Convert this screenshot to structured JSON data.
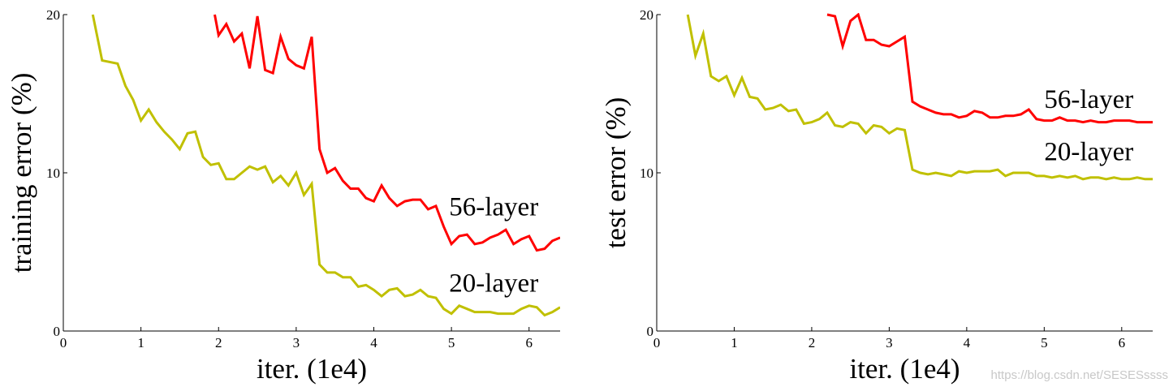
{
  "watermark": "https://blog.csdn.net/SESESssss",
  "chart_data": [
    {
      "type": "line",
      "title": "",
      "xlabel": "iter. (1e4)",
      "ylabel": "training error (%)",
      "xlim": [
        0,
        6.4
      ],
      "ylim": [
        0,
        20
      ],
      "xticks": [
        0,
        1,
        2,
        3,
        4,
        5,
        6
      ],
      "yticks": [
        0,
        10,
        20
      ],
      "grid": false,
      "series": [
        {
          "name": "56-layer",
          "color": "#ff0000",
          "label_at": [
            4.97,
            7.3
          ],
          "x": [
            1.95,
            2.0,
            2.1,
            2.2,
            2.3,
            2.4,
            2.5,
            2.6,
            2.7,
            2.8,
            2.9,
            3.0,
            3.1,
            3.2,
            3.3,
            3.4,
            3.5,
            3.6,
            3.7,
            3.8,
            3.9,
            4.0,
            4.1,
            4.2,
            4.3,
            4.4,
            4.5,
            4.6,
            4.7,
            4.8,
            4.9,
            5.0,
            5.1,
            5.2,
            5.3,
            5.4,
            5.5,
            5.6,
            5.7,
            5.8,
            5.9,
            6.0,
            6.1,
            6.2,
            6.3,
            6.4
          ],
          "y": [
            20.0,
            18.7,
            19.4,
            18.3,
            18.8,
            16.6,
            19.9,
            16.5,
            16.3,
            18.6,
            17.2,
            16.8,
            16.6,
            18.6,
            11.5,
            10.0,
            10.3,
            9.5,
            9.0,
            9.0,
            8.4,
            8.2,
            9.2,
            8.4,
            7.9,
            8.2,
            8.3,
            8.3,
            7.7,
            7.9,
            6.6,
            5.5,
            6.0,
            6.1,
            5.5,
            5.6,
            5.9,
            6.1,
            6.4,
            5.5,
            5.8,
            6.0,
            5.1,
            5.2,
            5.7,
            5.9
          ]
        },
        {
          "name": "20-layer",
          "color": "#c0c000",
          "label_at": [
            4.97,
            2.5
          ],
          "x": [
            0.38,
            0.5,
            0.7,
            0.8,
            0.9,
            1.0,
            1.1,
            1.2,
            1.3,
            1.4,
            1.5,
            1.6,
            1.7,
            1.8,
            1.9,
            2.0,
            2.1,
            2.2,
            2.3,
            2.4,
            2.5,
            2.6,
            2.7,
            2.8,
            2.9,
            3.0,
            3.1,
            3.2,
            3.3,
            3.4,
            3.5,
            3.6,
            3.7,
            3.8,
            3.9,
            4.0,
            4.1,
            4.2,
            4.3,
            4.4,
            4.5,
            4.6,
            4.7,
            4.8,
            4.9,
            5.0,
            5.1,
            5.2,
            5.3,
            5.4,
            5.5,
            5.6,
            5.7,
            5.8,
            5.9,
            6.0,
            6.1,
            6.2,
            6.3,
            6.4
          ],
          "y": [
            20.0,
            17.1,
            16.9,
            15.5,
            14.6,
            13.3,
            14.0,
            13.2,
            12.6,
            12.1,
            11.5,
            12.5,
            12.6,
            11.0,
            10.5,
            10.6,
            9.6,
            9.6,
            10.0,
            10.4,
            10.2,
            10.4,
            9.4,
            9.8,
            9.2,
            10.0,
            8.6,
            9.3,
            4.2,
            3.7,
            3.7,
            3.4,
            3.4,
            2.8,
            2.9,
            2.6,
            2.2,
            2.6,
            2.7,
            2.2,
            2.3,
            2.6,
            2.2,
            2.1,
            1.4,
            1.1,
            1.6,
            1.4,
            1.2,
            1.2,
            1.2,
            1.1,
            1.1,
            1.1,
            1.4,
            1.6,
            1.5,
            1.0,
            1.2,
            1.5
          ]
        }
      ]
    },
    {
      "type": "line",
      "title": "",
      "xlabel": "iter. (1e4)",
      "ylabel": "test error (%)",
      "xlim": [
        0,
        6.4
      ],
      "ylim": [
        0,
        20
      ],
      "xticks": [
        0,
        1,
        2,
        3,
        4,
        5,
        6
      ],
      "yticks": [
        0,
        10,
        20
      ],
      "grid": false,
      "series": [
        {
          "name": "56-layer",
          "color": "#ff0000",
          "label_at": [
            5.0,
            14.1
          ],
          "x": [
            2.2,
            2.3,
            2.4,
            2.5,
            2.6,
            2.7,
            2.8,
            2.9,
            3.0,
            3.1,
            3.2,
            3.3,
            3.4,
            3.5,
            3.6,
            3.7,
            3.8,
            3.9,
            4.0,
            4.1,
            4.2,
            4.3,
            4.4,
            4.5,
            4.6,
            4.7,
            4.8,
            4.9,
            5.0,
            5.1,
            5.2,
            5.3,
            5.4,
            5.5,
            5.6,
            5.7,
            5.8,
            5.9,
            6.0,
            6.1,
            6.2,
            6.3,
            6.4
          ],
          "y": [
            20.0,
            19.9,
            18.0,
            19.6,
            20.0,
            18.4,
            18.4,
            18.1,
            18.0,
            18.3,
            18.6,
            14.5,
            14.2,
            14.0,
            13.8,
            13.7,
            13.7,
            13.5,
            13.6,
            13.9,
            13.8,
            13.5,
            13.5,
            13.6,
            13.6,
            13.7,
            14.0,
            13.4,
            13.3,
            13.3,
            13.5,
            13.3,
            13.3,
            13.2,
            13.3,
            13.2,
            13.2,
            13.3,
            13.3,
            13.3,
            13.2,
            13.2,
            13.2
          ]
        },
        {
          "name": "20-layer",
          "color": "#c0c000",
          "label_at": [
            5.0,
            10.8
          ],
          "x": [
            0.4,
            0.5,
            0.6,
            0.7,
            0.8,
            0.9,
            1.0,
            1.1,
            1.2,
            1.3,
            1.4,
            1.5,
            1.6,
            1.7,
            1.8,
            1.9,
            2.0,
            2.1,
            2.2,
            2.3,
            2.4,
            2.5,
            2.6,
            2.7,
            2.8,
            2.9,
            3.0,
            3.1,
            3.2,
            3.3,
            3.4,
            3.5,
            3.6,
            3.7,
            3.8,
            3.9,
            4.0,
            4.1,
            4.2,
            4.3,
            4.4,
            4.5,
            4.6,
            4.7,
            4.8,
            4.9,
            5.0,
            5.1,
            5.2,
            5.3,
            5.4,
            5.5,
            5.6,
            5.7,
            5.8,
            5.9,
            6.0,
            6.1,
            6.2,
            6.3,
            6.4
          ],
          "y": [
            20.0,
            17.4,
            18.8,
            16.1,
            15.8,
            16.1,
            14.9,
            16.0,
            14.8,
            14.7,
            14.0,
            14.1,
            14.3,
            13.9,
            14.0,
            13.1,
            13.2,
            13.4,
            13.8,
            13.0,
            12.9,
            13.2,
            13.1,
            12.5,
            13.0,
            12.9,
            12.5,
            12.8,
            12.7,
            10.2,
            10.0,
            9.9,
            10.0,
            9.9,
            9.8,
            10.1,
            10.0,
            10.1,
            10.1,
            10.1,
            10.2,
            9.8,
            10.0,
            10.0,
            10.0,
            9.8,
            9.8,
            9.7,
            9.8,
            9.7,
            9.8,
            9.6,
            9.7,
            9.7,
            9.6,
            9.7,
            9.6,
            9.6,
            9.7,
            9.6,
            9.6
          ]
        }
      ]
    }
  ]
}
